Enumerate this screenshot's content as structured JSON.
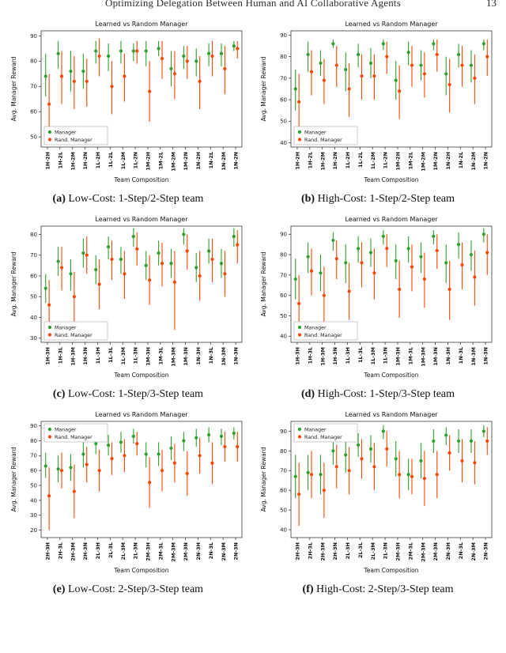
{
  "page": {
    "header_title": "Optimizing Delegation Between Human and AI Collaborative Agents",
    "page_number": "13"
  },
  "colors": {
    "manager": "#2ca02c",
    "rand_manager": "#ff4500"
  },
  "figures": [
    {
      "label": "(a)",
      "caption": " Low-Cost: 1-Step/2-Step team"
    },
    {
      "label": "(b)",
      "caption": " High-Cost: 1-Step/2-Step team"
    },
    {
      "label": "(c)",
      "caption": " Low-Cost: 1-Step/3-Step team"
    },
    {
      "label": "(d)",
      "caption": " High-Cost: 1-Step/3-Step team"
    },
    {
      "label": "(e)",
      "caption": " Low-Cost: 2-Step/3-Step team"
    },
    {
      "label": "(f)",
      "caption": " High-Cost: 2-Step/3-Step team"
    }
  ],
  "chart_data": [
    {
      "id": "a",
      "type": "scatter",
      "title": "Learned vs Random Manager",
      "xlabel": "Team Composition",
      "ylabel": "Avg. Manager Reward",
      "legend_pos": "lower-left",
      "categories": [
        "1H-2H",
        "1H-2L",
        "1H-2M",
        "1H-2N",
        "1L-2H",
        "1L-2L",
        "1L-2M",
        "1L-2N",
        "1M-2H",
        "1M-2L",
        "1M-2M",
        "1M-2N",
        "1N-2H",
        "1N-2L",
        "1N-2M",
        "1N-2N"
      ],
      "yticks": [
        50,
        60,
        70,
        80,
        90
      ],
      "ylim": [
        46,
        92
      ],
      "series": [
        {
          "name": "Manager",
          "color": "#2ca02c",
          "values": [
            74,
            83,
            76,
            76,
            84,
            82,
            84,
            84,
            84,
            85,
            77,
            82,
            80,
            83,
            83,
            86
          ],
          "lo": [
            66,
            77,
            68,
            69,
            79,
            76,
            79,
            80,
            78,
            82,
            70,
            77,
            74,
            78,
            78,
            84
          ],
          "hi": [
            83,
            88,
            84,
            83,
            88,
            87,
            88,
            87,
            88,
            88,
            84,
            86,
            85,
            87,
            87,
            88
          ]
        },
        {
          "name": "Rand. Manager",
          "color": "#ff4500",
          "values": [
            63,
            74,
            72,
            72,
            82,
            70,
            74,
            84,
            68,
            81,
            75,
            80,
            72,
            82,
            77,
            85
          ],
          "lo": [
            51,
            63,
            61,
            62,
            74,
            59,
            64,
            79,
            56,
            73,
            65,
            73,
            61,
            74,
            67,
            81
          ],
          "hi": [
            75,
            84,
            82,
            81,
            89,
            80,
            83,
            88,
            80,
            88,
            84,
            86,
            82,
            88,
            86,
            88
          ]
        }
      ]
    },
    {
      "id": "b",
      "type": "scatter",
      "title": "Learned vs Random Manager",
      "xlabel": "Team Composition",
      "ylabel": "Avg. Manager Reward",
      "legend_pos": "lower-left",
      "categories": [
        "1H-2H",
        "1H-2L",
        "1H-2M",
        "1H-2N",
        "1L-2H",
        "1L-2L",
        "1L-2M",
        "1L-2N",
        "1M-2H",
        "1M-2L",
        "1M-2M",
        "1M-2N",
        "1N-2H",
        "1N-2L",
        "1N-2M",
        "1N-2N"
      ],
      "yticks": [
        40,
        50,
        60,
        70,
        80,
        90
      ],
      "ylim": [
        38,
        92
      ],
      "series": [
        {
          "name": "Manager",
          "color": "#2ca02c",
          "values": [
            65,
            81,
            77,
            86,
            74,
            81,
            77,
            86,
            69,
            82,
            76,
            86,
            72,
            81,
            76,
            86
          ],
          "lo": [
            55,
            73,
            71,
            84,
            64,
            75,
            70,
            83,
            60,
            76,
            69,
            83,
            62,
            75,
            68,
            83
          ],
          "hi": [
            74,
            87,
            83,
            88,
            82,
            86,
            84,
            88,
            78,
            87,
            83,
            88,
            80,
            86,
            83,
            88
          ]
        },
        {
          "name": "Rand. Manager",
          "color": "#ff4500",
          "values": [
            59,
            73,
            69,
            76,
            65,
            71,
            71,
            80,
            64,
            76,
            72,
            81,
            67,
            76,
            70,
            80
          ],
          "lo": [
            45,
            62,
            58,
            66,
            52,
            60,
            60,
            72,
            51,
            66,
            61,
            73,
            54,
            66,
            58,
            71
          ],
          "hi": [
            72,
            83,
            79,
            85,
            77,
            81,
            81,
            87,
            76,
            85,
            82,
            88,
            79,
            85,
            81,
            88
          ]
        }
      ]
    },
    {
      "id": "c",
      "type": "scatter",
      "title": "Learned vs Random Manager",
      "xlabel": "Team Composition",
      "ylabel": "Avg. Manager Reward",
      "legend_pos": "lower-left",
      "categories": [
        "1H-3H",
        "1H-3L",
        "1H-3M",
        "1H-3N",
        "1L-3H",
        "1L-3L",
        "1L-3M",
        "1L-3N",
        "1M-3H",
        "1M-3L",
        "1M-3M",
        "1M-3N",
        "1N-3H",
        "1N-3L",
        "1N-3M",
        "1N-3N"
      ],
      "yticks": [
        30,
        40,
        50,
        60,
        70,
        80
      ],
      "ylim": [
        28,
        84
      ],
      "series": [
        {
          "name": "Manager",
          "color": "#2ca02c",
          "values": [
            54,
            67,
            61,
            71,
            63,
            74,
            68,
            79,
            65,
            71,
            66,
            80,
            64,
            72,
            66,
            79
          ],
          "lo": [
            47,
            60,
            53,
            64,
            56,
            68,
            61,
            74,
            58,
            65,
            59,
            75,
            57,
            66,
            59,
            74
          ],
          "hi": [
            61,
            74,
            68,
            78,
            70,
            79,
            74,
            83,
            72,
            77,
            73,
            83,
            71,
            78,
            73,
            83
          ]
        },
        {
          "name": "Rand. Manager",
          "color": "#ff4500",
          "values": [
            46,
            64,
            50,
            70,
            56,
            68,
            61,
            73,
            58,
            66,
            57,
            72,
            60,
            68,
            61,
            75
          ],
          "lo": [
            34,
            53,
            38,
            61,
            44,
            58,
            49,
            65,
            46,
            55,
            34,
            63,
            48,
            57,
            50,
            66
          ],
          "hi": [
            58,
            74,
            62,
            79,
            68,
            77,
            72,
            81,
            70,
            76,
            72,
            80,
            72,
            78,
            72,
            82
          ]
        }
      ]
    },
    {
      "id": "d",
      "type": "scatter",
      "title": "Learned vs Random Manager",
      "xlabel": "Team Composition",
      "ylabel": "Avg. Manager Reward",
      "legend_pos": "lower-left",
      "categories": [
        "1H-3H",
        "1H-3L",
        "1H-3M",
        "1H-3N",
        "1L-3H",
        "1L-3L",
        "1L-3M",
        "1L-3N",
        "1M-3H",
        "1M-3L",
        "1M-3M",
        "1M-3N",
        "1N-3H",
        "1N-3L",
        "1N-3M",
        "1N-3N"
      ],
      "yticks": [
        40,
        50,
        60,
        70,
        80,
        90
      ],
      "ylim": [
        37,
        94
      ],
      "series": [
        {
          "name": "Manager",
          "color": "#2ca02c",
          "values": [
            68,
            79,
            71,
            87,
            76,
            83,
            81,
            89,
            77,
            83,
            79,
            89,
            76,
            85,
            80,
            90
          ],
          "lo": [
            58,
            71,
            62,
            82,
            66,
            76,
            74,
            85,
            68,
            76,
            71,
            85,
            66,
            78,
            72,
            86
          ],
          "hi": [
            78,
            86,
            80,
            91,
            85,
            89,
            88,
            92,
            85,
            89,
            86,
            92,
            85,
            91,
            87,
            93
          ]
        },
        {
          "name": "Rand. Manager",
          "color": "#ff4500",
          "values": [
            56,
            72,
            60,
            78,
            62,
            76,
            71,
            83,
            63,
            74,
            68,
            82,
            63,
            75,
            69,
            81
          ],
          "lo": [
            42,
            60,
            46,
            68,
            48,
            64,
            58,
            74,
            49,
            62,
            54,
            73,
            48,
            63,
            55,
            70
          ],
          "hi": [
            70,
            83,
            74,
            87,
            76,
            86,
            83,
            90,
            77,
            85,
            81,
            90,
            77,
            86,
            82,
            90
          ]
        }
      ]
    },
    {
      "id": "e",
      "type": "scatter",
      "title": "Learned vs Random Manager",
      "xlabel": "Team Composition",
      "ylabel": "Avg. Manager Reward",
      "legend_pos": "upper-left",
      "categories": [
        "2H-3H",
        "2H-3L",
        "2H-3M",
        "2H-3N",
        "2L-3H",
        "2L-3L",
        "2L-3M",
        "2L-3N",
        "2M-3H",
        "2M-3L",
        "2M-3M",
        "2M-3N",
        "2N-3H",
        "2N-3L",
        "2N-3M",
        "2N-3N"
      ],
      "yticks": [
        20,
        30,
        40,
        50,
        60,
        70,
        80,
        90
      ],
      "ylim": [
        15,
        93
      ],
      "series": [
        {
          "name": "Manager",
          "color": "#2ca02c",
          "values": [
            63,
            61,
            62,
            71,
            78,
            77,
            79,
            83,
            71,
            71,
            75,
            80,
            82,
            84,
            83,
            85
          ],
          "lo": [
            55,
            52,
            53,
            62,
            71,
            70,
            72,
            78,
            62,
            63,
            67,
            73,
            76,
            79,
            77,
            81
          ],
          "hi": [
            72,
            70,
            71,
            79,
            85,
            84,
            86,
            88,
            79,
            79,
            83,
            86,
            88,
            89,
            88,
            89
          ]
        },
        {
          "name": "Rand. Manager",
          "color": "#ff4500",
          "values": [
            43,
            60,
            46,
            64,
            60,
            68,
            70,
            78,
            52,
            60,
            65,
            58,
            70,
            65,
            76,
            76
          ],
          "lo": [
            20,
            48,
            28,
            52,
            46,
            57,
            59,
            70,
            35,
            46,
            52,
            43,
            58,
            51,
            66,
            66
          ],
          "hi": [
            62,
            72,
            64,
            76,
            74,
            79,
            81,
            86,
            69,
            74,
            78,
            73,
            82,
            79,
            86,
            86
          ]
        }
      ]
    },
    {
      "id": "f",
      "type": "scatter",
      "title": "Learned vs Random Manager",
      "xlabel": "Team Composition",
      "ylabel": "Avg. Manager Reward",
      "legend_pos": "upper-left",
      "categories": [
        "2H-3H",
        "2H-3L",
        "2H-3M",
        "2H-3N",
        "2L-3H",
        "2L-3L",
        "2L-3M",
        "2L-3N",
        "2M-3H",
        "2M-3L",
        "2M-3M",
        "2M-3N",
        "2N-3H",
        "2N-3L",
        "2N-3M",
        "2N-3N"
      ],
      "yticks": [
        40,
        50,
        60,
        70,
        80,
        90
      ],
      "ylim": [
        36,
        95
      ],
      "series": [
        {
          "name": "Manager",
          "color": "#2ca02c",
          "values": [
            67,
            69,
            68,
            80,
            78,
            83,
            81,
            90,
            76,
            68,
            75,
            85,
            88,
            85,
            85,
            90
          ],
          "lo": [
            56,
            60,
            58,
            73,
            69,
            77,
            74,
            86,
            67,
            60,
            66,
            79,
            83,
            79,
            79,
            87
          ],
          "hi": [
            78,
            78,
            78,
            87,
            86,
            89,
            88,
            93,
            85,
            76,
            84,
            91,
            92,
            91,
            91,
            93
          ]
        },
        {
          "name": "Rand. Manager",
          "color": "#ff4500",
          "values": [
            58,
            68,
            60,
            72,
            70,
            76,
            72,
            81,
            68,
            67,
            66,
            68,
            79,
            75,
            74,
            85
          ],
          "lo": [
            42,
            56,
            46,
            61,
            58,
            66,
            60,
            72,
            56,
            58,
            52,
            56,
            70,
            64,
            63,
            78
          ],
          "hi": [
            74,
            80,
            74,
            83,
            82,
            86,
            84,
            90,
            80,
            76,
            80,
            80,
            88,
            86,
            85,
            92
          ]
        }
      ]
    }
  ]
}
